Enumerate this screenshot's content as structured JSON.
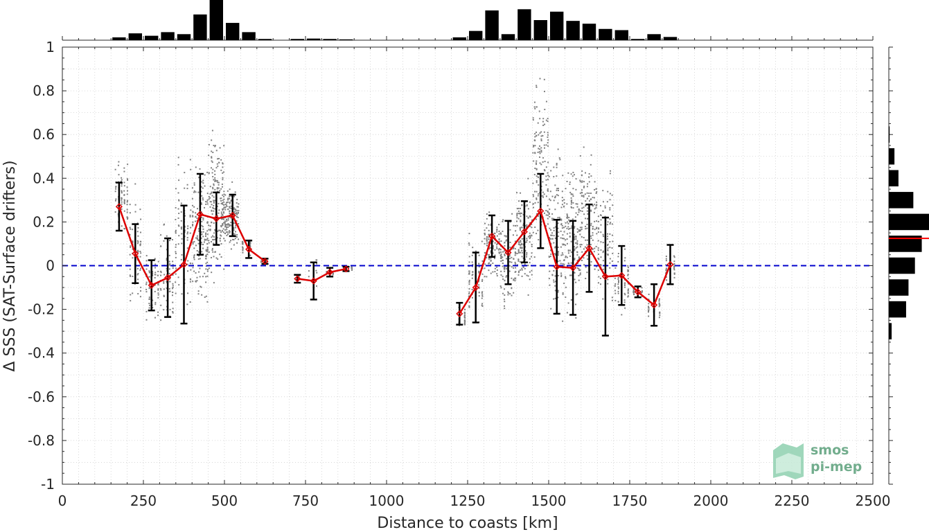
{
  "chart_data": {
    "type": "scatter",
    "xlabel": "Distance to coasts [km]",
    "ylabel": "Δ SSS (SAT-Surface drifters)",
    "xlim": [
      0,
      2500
    ],
    "ylim": [
      -1,
      1
    ],
    "xticks": [
      0,
      250,
      500,
      750,
      1000,
      1250,
      1500,
      1750,
      2000,
      2250,
      2500
    ],
    "yticks": [
      -1,
      -0.8,
      -0.6,
      -0.4,
      -0.2,
      0,
      0.2,
      0.4,
      0.6,
      0.8,
      1
    ],
    "xtick_labels": [
      "0",
      "250",
      "500",
      "750",
      "1000",
      "1250",
      "1500",
      "1750",
      "2000",
      "2250",
      "2500"
    ],
    "ytick_labels": [
      "-1",
      "-0.8",
      "-0.6",
      "-0.4",
      "-0.2",
      "0",
      "0.2",
      "0.4",
      "0.6",
      "0.8",
      "1"
    ],
    "grid": true,
    "zero_line": {
      "y": 0,
      "color": "#0000cc",
      "style": "dashed"
    },
    "mean_series": {
      "color": "#dd0000",
      "segments": [
        [
          {
            "x": 175,
            "y": 0.27,
            "std": 0.11
          },
          {
            "x": 225,
            "y": 0.055,
            "std": 0.135
          },
          {
            "x": 275,
            "y": -0.09,
            "std": 0.115
          },
          {
            "x": 325,
            "y": -0.055,
            "std": 0.18
          },
          {
            "x": 375,
            "y": 0.005,
            "std": 0.27
          },
          {
            "x": 425,
            "y": 0.235,
            "std": 0.185
          },
          {
            "x": 475,
            "y": 0.215,
            "std": 0.12
          },
          {
            "x": 525,
            "y": 0.23,
            "std": 0.095
          },
          {
            "x": 575,
            "y": 0.075,
            "std": 0.04
          },
          {
            "x": 625,
            "y": 0.02,
            "std": 0.012
          }
        ],
        [
          {
            "x": 725,
            "y": -0.06,
            "std": 0.018
          },
          {
            "x": 775,
            "y": -0.07,
            "std": 0.085
          },
          {
            "x": 825,
            "y": -0.03,
            "std": 0.02
          },
          {
            "x": 875,
            "y": -0.015,
            "std": 0.01
          }
        ],
        [
          {
            "x": 1225,
            "y": -0.22,
            "std": 0.05
          },
          {
            "x": 1275,
            "y": -0.1,
            "std": 0.16
          },
          {
            "x": 1325,
            "y": 0.135,
            "std": 0.095
          },
          {
            "x": 1375,
            "y": 0.06,
            "std": 0.145
          },
          {
            "x": 1425,
            "y": 0.155,
            "std": 0.14
          },
          {
            "x": 1475,
            "y": 0.25,
            "std": 0.17
          },
          {
            "x": 1525,
            "y": -0.005,
            "std": 0.215
          },
          {
            "x": 1575,
            "y": -0.01,
            "std": 0.215
          },
          {
            "x": 1625,
            "y": 0.08,
            "std": 0.2
          },
          {
            "x": 1675,
            "y": -0.05,
            "std": 0.27
          },
          {
            "x": 1725,
            "y": -0.045,
            "std": 0.135
          },
          {
            "x": 1775,
            "y": -0.12,
            "std": 0.025
          },
          {
            "x": 1825,
            "y": -0.18,
            "std": 0.095
          },
          {
            "x": 1875,
            "y": 0.005,
            "std": 0.09
          }
        ]
      ]
    },
    "scatter_clusters": [
      {
        "x0": 160,
        "x1": 205,
        "ymin": 0.1,
        "ymax": 0.53,
        "n": 70
      },
      {
        "x0": 205,
        "x1": 245,
        "ymin": -0.25,
        "ymax": 0.4,
        "n": 80
      },
      {
        "x0": 255,
        "x1": 300,
        "ymin": -0.28,
        "ymax": 0.12,
        "n": 70
      },
      {
        "x0": 300,
        "x1": 345,
        "ymin": -0.38,
        "ymax": 0.25,
        "n": 70
      },
      {
        "x0": 345,
        "x1": 400,
        "ymin": -0.3,
        "ymax": 0.6,
        "n": 90
      },
      {
        "x0": 400,
        "x1": 450,
        "ymin": -0.3,
        "ymax": 0.55,
        "n": 170
      },
      {
        "x0": 450,
        "x1": 500,
        "ymin": -0.12,
        "ymax": 0.68,
        "n": 200
      },
      {
        "x0": 500,
        "x1": 545,
        "ymin": 0.05,
        "ymax": 0.4,
        "n": 150
      },
      {
        "x0": 545,
        "x1": 590,
        "ymin": 0.03,
        "ymax": 0.15,
        "n": 30
      },
      {
        "x0": 605,
        "x1": 640,
        "ymin": 0.01,
        "ymax": 0.03,
        "n": 10
      },
      {
        "x0": 715,
        "x1": 735,
        "ymin": -0.08,
        "ymax": -0.04,
        "n": 6
      },
      {
        "x0": 750,
        "x1": 795,
        "ymin": -0.12,
        "ymax": 0.1,
        "n": 12
      },
      {
        "x0": 805,
        "x1": 845,
        "ymin": -0.05,
        "ymax": -0.01,
        "n": 8
      },
      {
        "x0": 855,
        "x1": 905,
        "ymin": -0.03,
        "ymax": 0.01,
        "n": 8
      },
      {
        "x0": 1215,
        "x1": 1250,
        "ymin": -0.32,
        "ymax": -0.15,
        "n": 30
      },
      {
        "x0": 1250,
        "x1": 1300,
        "ymin": -0.32,
        "ymax": 0.2,
        "n": 80
      },
      {
        "x0": 1300,
        "x1": 1350,
        "ymin": -0.1,
        "ymax": 0.28,
        "n": 120
      },
      {
        "x0": 1350,
        "x1": 1400,
        "ymin": -0.25,
        "ymax": 0.3,
        "n": 130
      },
      {
        "x0": 1400,
        "x1": 1450,
        "ymin": -0.2,
        "ymax": 0.45,
        "n": 150
      },
      {
        "x0": 1450,
        "x1": 1500,
        "ymin": -0.1,
        "ymax": 0.95,
        "n": 150
      },
      {
        "x0": 1500,
        "x1": 1550,
        "ymin": -0.3,
        "ymax": 0.58,
        "n": 160
      },
      {
        "x0": 1550,
        "x1": 1600,
        "ymin": -0.3,
        "ymax": 0.58,
        "n": 160
      },
      {
        "x0": 1600,
        "x1": 1650,
        "ymin": -0.15,
        "ymax": 0.6,
        "n": 130
      },
      {
        "x0": 1650,
        "x1": 1700,
        "ymin": -0.3,
        "ymax": 0.52,
        "n": 100
      },
      {
        "x0": 1700,
        "x1": 1750,
        "ymin": -0.25,
        "ymax": 0.12,
        "n": 70
      },
      {
        "x0": 1750,
        "x1": 1800,
        "ymin": -0.15,
        "ymax": -0.08,
        "n": 20
      },
      {
        "x0": 1800,
        "x1": 1850,
        "ymin": -0.28,
        "ymax": -0.1,
        "n": 40
      },
      {
        "x0": 1850,
        "x1": 1900,
        "ymin": -0.1,
        "ymax": 0.08,
        "n": 30
      }
    ],
    "scatter_color": "#808080",
    "hist_x": {
      "bin_width": 50,
      "centers": [
        175,
        225,
        275,
        325,
        375,
        425,
        475,
        525,
        575,
        625,
        725,
        775,
        825,
        875,
        1225,
        1275,
        1325,
        1375,
        1425,
        1475,
        1525,
        1575,
        1625,
        1675,
        1725,
        1775,
        1825,
        1875
      ],
      "values": [
        0.07,
        0.17,
        0.11,
        0.2,
        0.15,
        0.64,
        1.0,
        0.43,
        0.2,
        0.03,
        0.03,
        0.04,
        0.03,
        0.02,
        0.07,
        0.23,
        0.74,
        0.15,
        0.77,
        0.5,
        0.71,
        0.48,
        0.41,
        0.28,
        0.25,
        0.03,
        0.15,
        0.08
      ]
    },
    "hist_y": {
      "bin_width": 0.1,
      "centers": [
        -0.3,
        -0.2,
        -0.1,
        0,
        0.1,
        0.2,
        0.3,
        0.4,
        0.5,
        0.6
      ],
      "values": [
        0.07,
        0.43,
        0.49,
        0.65,
        0.82,
        1.0,
        0.61,
        0.24,
        0.14,
        0.02
      ],
      "mean_line": {
        "y": 0.125,
        "color": "#ff0000"
      }
    }
  },
  "logo": {
    "line1": "smos",
    "line2": "pi-mep"
  }
}
